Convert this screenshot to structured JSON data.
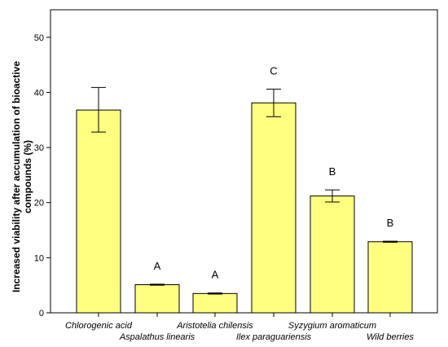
{
  "chart_data": {
    "type": "bar",
    "categories": [
      "Chlorogenic acid",
      "Aspalathus linearis",
      "Aristotelia chilensis",
      "Ilex paraguariensis",
      "Syzygium aromaticum",
      "Wild berries"
    ],
    "values": [
      36.8,
      5.1,
      3.5,
      38.1,
      21.2,
      12.9
    ],
    "error_low": [
      32.8,
      5.0,
      3.4,
      35.6,
      20.1,
      12.8
    ],
    "error_high": [
      40.9,
      5.2,
      3.6,
      40.6,
      22.3,
      13.0
    ],
    "letters": [
      "",
      "A",
      "A",
      "C",
      "B",
      "B"
    ],
    "title": "",
    "xlabel": "",
    "ylabel": "Increased viability after accumulation of bioactive compounds (%)",
    "ylabel_lines": [
      "Increased viability after accumulation of bioactive",
      "compounds (%)"
    ],
    "ylim": [
      0,
      55
    ],
    "yticks": [
      0,
      10,
      20,
      30,
      40,
      50
    ],
    "grid": false,
    "colors": {
      "bar_fill": "#ffff80",
      "bar_stroke": "#000000",
      "axis": "#000000"
    }
  }
}
